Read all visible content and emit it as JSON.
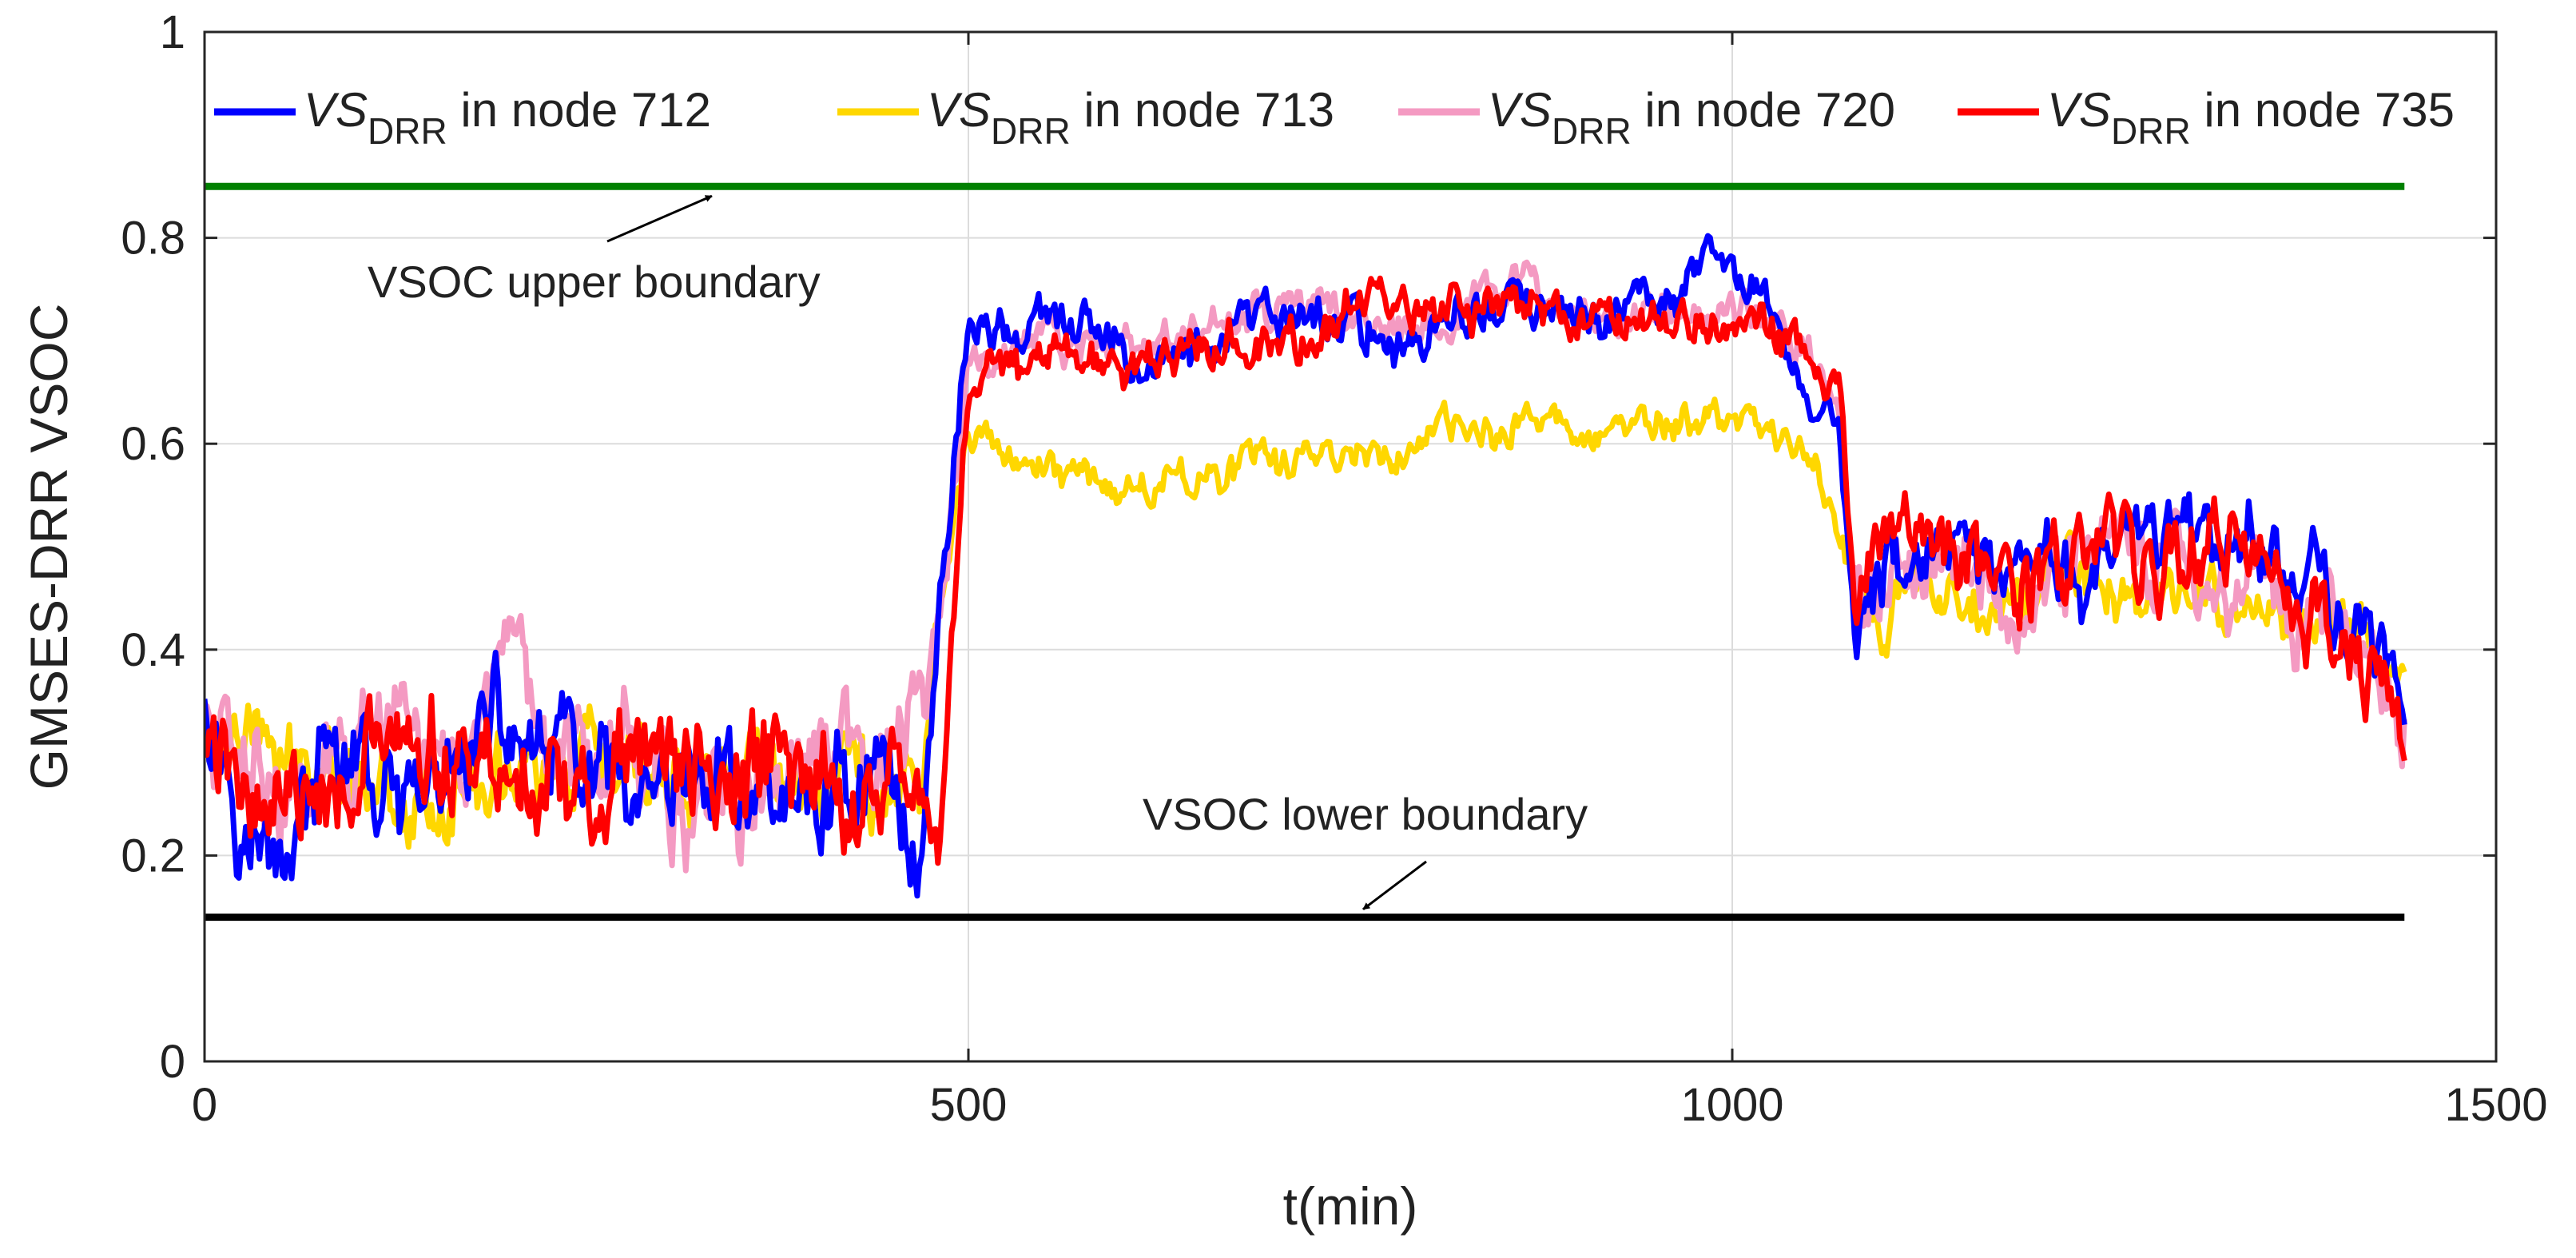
{
  "chart_data": {
    "type": "line",
    "title": "",
    "xlabel": "t(min)",
    "ylabel": "GMSES-DRR  VSOC",
    "xlim": [
      0,
      1500
    ],
    "ylim": [
      0,
      1
    ],
    "xticks": [
      0,
      500,
      1000,
      1500
    ],
    "yticks": [
      0,
      0.2,
      0.4,
      0.6,
      0.8,
      1
    ],
    "xtick_labels": [
      "0",
      "500",
      "1000",
      "1500"
    ],
    "ytick_labels": [
      "0",
      "0.2",
      "0.4",
      "0.6",
      "0.8",
      "1"
    ],
    "grid": true,
    "legend_position": "top",
    "legend": [
      {
        "prefix": "VS",
        "sub": "DRR",
        "suffix": " in node 712",
        "color": "#0000ff"
      },
      {
        "prefix": "VS",
        "sub": "DRR",
        "suffix": " in node 713",
        "color": "#ffd700"
      },
      {
        "prefix": "VS",
        "sub": "DRR",
        "suffix": " in node 720",
        "color": "#f49ac2"
      },
      {
        "prefix": "VS",
        "sub": "DRR",
        "suffix": " in node 735",
        "color": "#ff0000"
      }
    ],
    "x": [
      0,
      40,
      80,
      120,
      160,
      200,
      240,
      280,
      320,
      360,
      400,
      440,
      470,
      480,
      500,
      540,
      580,
      620,
      660,
      700,
      740,
      780,
      820,
      860,
      900,
      940,
      980,
      1020,
      1050,
      1070,
      1080,
      1100,
      1140,
      1180,
      1220,
      1260,
      1300,
      1340,
      1380,
      1420,
      1440
    ],
    "series": [
      {
        "name": "VS_DRR in node 712",
        "color": "#0000ff",
        "values": [
          0.38,
          0.22,
          0.3,
          0.24,
          0.27,
          0.31,
          0.29,
          0.25,
          0.27,
          0.28,
          0.25,
          0.3,
          0.22,
          0.42,
          0.72,
          0.72,
          0.7,
          0.69,
          0.69,
          0.71,
          0.73,
          0.7,
          0.72,
          0.74,
          0.72,
          0.73,
          0.76,
          0.74,
          0.64,
          0.62,
          0.42,
          0.47,
          0.5,
          0.45,
          0.48,
          0.5,
          0.51,
          0.52,
          0.47,
          0.41,
          0.33
        ]
      },
      {
        "name": "VS_DRR in node 713",
        "color": "#ffd700",
        "values": [
          0.3,
          0.28,
          0.28,
          0.27,
          0.27,
          0.29,
          0.28,
          0.27,
          0.27,
          0.28,
          0.28,
          0.28,
          0.27,
          0.45,
          0.6,
          0.59,
          0.57,
          0.57,
          0.58,
          0.58,
          0.59,
          0.6,
          0.61,
          0.62,
          0.61,
          0.61,
          0.62,
          0.63,
          0.6,
          0.52,
          0.46,
          0.44,
          0.46,
          0.46,
          0.46,
          0.45,
          0.45,
          0.44,
          0.42,
          0.4,
          0.38
        ]
      },
      {
        "name": "VS_DRR in node 720",
        "color": "#f49ac2",
        "values": [
          0.32,
          0.25,
          0.27,
          0.32,
          0.27,
          0.36,
          0.27,
          0.32,
          0.24,
          0.26,
          0.28,
          0.27,
          0.3,
          0.42,
          0.66,
          0.7,
          0.7,
          0.7,
          0.71,
          0.72,
          0.73,
          0.72,
          0.74,
          0.74,
          0.73,
          0.72,
          0.72,
          0.74,
          0.7,
          0.63,
          0.45,
          0.48,
          0.49,
          0.46,
          0.48,
          0.49,
          0.48,
          0.46,
          0.44,
          0.4,
          0.33
        ]
      },
      {
        "name": "VS_DRR in node 735",
        "color": "#ff0000",
        "values": [
          0.3,
          0.26,
          0.29,
          0.27,
          0.28,
          0.31,
          0.26,
          0.29,
          0.25,
          0.27,
          0.29,
          0.24,
          0.26,
          0.2,
          0.67,
          0.69,
          0.7,
          0.69,
          0.7,
          0.71,
          0.72,
          0.73,
          0.72,
          0.73,
          0.71,
          0.72,
          0.72,
          0.73,
          0.67,
          0.64,
          0.43,
          0.47,
          0.48,
          0.47,
          0.5,
          0.49,
          0.51,
          0.49,
          0.44,
          0.4,
          0.31
        ]
      }
    ],
    "reference_lines": [
      {
        "name": "VSOC upper boundary",
        "y": 0.85,
        "color": "#008000"
      },
      {
        "name": "VSOC lower boundary",
        "y": 0.14,
        "color": "#000000"
      }
    ],
    "annotations": [
      {
        "text": "VSOC upper boundary",
        "arrow_to": [
          330,
          0.85
        ]
      },
      {
        "text": "VSOC lower boundary",
        "arrow_to": [
          750,
          0.14
        ]
      }
    ]
  }
}
